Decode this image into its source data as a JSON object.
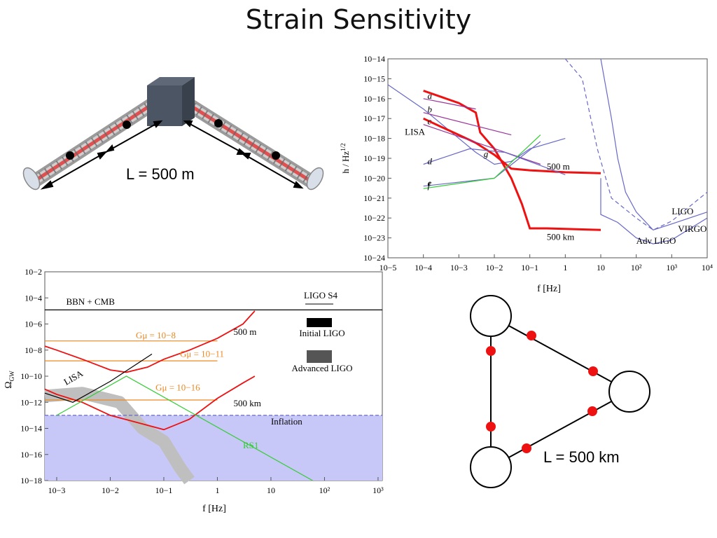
{
  "slide": {
    "title": "Strain Sensitivity"
  },
  "ground_detector": {
    "arm_label": "L = 500 m"
  },
  "space_detector": {
    "arm_label": "L = 500 km"
  },
  "colors": {
    "red": "#ee1111",
    "blue": "#6868c8",
    "green": "#33cc33",
    "purple": "#993399",
    "orange": "#ee8822",
    "inflation": "#c8c8f8",
    "gray": "#bfbfbf"
  },
  "chart_data": [
    {
      "type": "line",
      "xlabel": "f [Hz]",
      "ylabel": "h / Hz^1/2",
      "x_scale": "log",
      "y_scale": "log",
      "xlim": [
        1e-05,
        10000.0
      ],
      "ylim": [
        1e-24,
        1e-14
      ],
      "x_ticks": [
        "10−5",
        "10−4",
        "10−3",
        "10−2",
        "10−1",
        "1",
        "10",
        "10²",
        "10³",
        "10⁴"
      ],
      "y_ticks": [
        "10−24",
        "10−23",
        "10−22",
        "10−21",
        "10−20",
        "10−19",
        "10−18",
        "10−17",
        "10−16",
        "10−15",
        "10−14"
      ],
      "series": [
        {
          "name": "LISA",
          "color": "blue",
          "x": [
            1e-05,
            0.0001,
            0.001,
            0.003,
            0.01,
            0.03,
            0.1,
            1
          ],
          "y": [
            5e-16,
            3e-17,
            1e-18,
            2e-19,
            5e-20,
            7e-20,
            3e-19,
            1e-18
          ]
        },
        {
          "name": "LIGO",
          "color": "blue",
          "dashed": true,
          "x": [
            1,
            3,
            8,
            20,
            100,
            300,
            1000,
            10000.0
          ],
          "y": [
            1e-14,
            1e-15,
            3e-19,
            1e-21,
            1e-22,
            2.5e-23,
            7e-23,
            2e-21
          ]
        },
        {
          "name": "VIRGO",
          "color": "blue",
          "x": [
            10,
            20,
            30,
            50,
            100,
            300,
            1000,
            10000.0
          ],
          "y": [
            1e-14,
            1e-17,
            1e-19,
            2e-21,
            2e-22,
            2.5e-23,
            5e-23,
            2e-22
          ]
        },
        {
          "name": "Adv LIGO",
          "color": "blue",
          "x": [
            10,
            10,
            30,
            100,
            300,
            1000,
            10000.0
          ],
          "y": [
            1e-20,
            1.5e-22,
            6e-23,
            1e-23,
            5e-24,
            8e-24,
            1e-22
          ]
        },
        {
          "name": "500 m",
          "color": "red",
          "x": [
            0.0001,
            0.0003,
            0.001,
            0.003,
            0.01,
            0.03,
            0.1,
            1,
            10
          ],
          "y": [
            1e-17,
            4e-18,
            1.5e-18,
            6e-19,
            1.5e-19,
            3e-20,
            2.5e-20,
            2e-20,
            1.8e-20
          ]
        },
        {
          "name": "500 km",
          "color": "red",
          "x": [
            0.0001,
            0.001,
            0.003,
            0.004,
            0.01,
            0.03,
            0.06,
            0.1,
            0.3,
            10
          ],
          "y": [
            2.5e-16,
            6e-17,
            2e-17,
            2e-18,
            3e-19,
            1e-20,
            5e-22,
            3e-23,
            3e-23,
            2.5e-23
          ]
        },
        {
          "name": "a",
          "color": "purple",
          "x": [
            0.0001,
            0.003
          ],
          "y": [
            1e-16,
            3e-17
          ]
        },
        {
          "name": "b",
          "color": "purple",
          "x": [
            0.0001,
            0.03
          ],
          "y": [
            2e-17,
            1.5e-18
          ]
        },
        {
          "name": "c",
          "color": "purple",
          "x": [
            0.0001,
            0.2
          ],
          "y": [
            5e-18,
            5e-20
          ]
        },
        {
          "name": "d",
          "color": "blue",
          "x": [
            0.0001,
            0.002,
            0.02,
            1
          ],
          "y": [
            5e-20,
            3e-19,
            2e-19,
            1.5e-20
          ]
        },
        {
          "name": "e",
          "color": "blue",
          "x": [
            0.0001,
            0.01,
            0.2
          ],
          "y": [
            4e-21,
            1e-20,
            7e-19
          ]
        },
        {
          "name": "f",
          "color": "green",
          "x": [
            0.0001,
            0.01,
            0.2
          ],
          "y": [
            3e-21,
            1e-20,
            1.5e-18
          ]
        }
      ],
      "annotations": [
        "LISA",
        "a",
        "b",
        "c",
        "d",
        "e",
        "f",
        "g",
        "500 m",
        "500 km",
        "LIGO",
        "VIRGO",
        "Adv LIGO"
      ]
    },
    {
      "type": "line",
      "xlabel": "f [Hz]",
      "ylabel": "Ω_GW",
      "x_scale": "log",
      "y_scale": "log",
      "xlim": [
        0.0006,
        1200.0
      ],
      "ylim": [
        1e-18,
        0.01
      ],
      "x_ticks": [
        "10−3",
        "10−2",
        "10−1",
        "1",
        "10",
        "10²",
        "10³"
      ],
      "y_ticks": [
        "10−2",
        "10−4",
        "10−6",
        "10−8",
        "10−10",
        "10−12",
        "10−14",
        "10−16",
        "10−18"
      ],
      "series": [
        {
          "name": "BBN + CMB",
          "color": "black",
          "x": [
            0.0006,
            1200.0
          ],
          "y": [
            1.2e-05,
            1.2e-05
          ]
        },
        {
          "name": "Inflation",
          "color": "blue",
          "x": [
            0.0006,
            1200.0
          ],
          "y": [
            1e-13,
            1e-13
          ]
        },
        {
          "name": "Gμ = 10−8",
          "color": "orange",
          "x": [
            0.0006,
            1
          ],
          "y": [
            5e-08,
            5e-08
          ]
        },
        {
          "name": "Gμ = 10−11",
          "color": "orange",
          "x": [
            0.0006,
            1
          ],
          "y": [
            1.5e-09,
            1.5e-09
          ]
        },
        {
          "name": "Gμ = 10−16",
          "color": "orange",
          "x": [
            0.0006,
            1
          ],
          "y": [
            1.5e-12,
            1.5e-12
          ]
        },
        {
          "name": "500 m",
          "color": "red",
          "x": [
            0.0006,
            0.001,
            0.003,
            0.01,
            0.02,
            0.05,
            0.1,
            0.3,
            1,
            3,
            5
          ],
          "y": [
            2e-08,
            1e-08,
            2e-09,
            3e-10,
            2e-10,
            5e-10,
            2e-09,
            1e-08,
            8e-08,
            1e-06,
            1e-05
          ]
        },
        {
          "name": "500 km",
          "color": "red",
          "x": [
            0.0006,
            0.001,
            0.003,
            0.01,
            0.03,
            0.1,
            0.3,
            1,
            3,
            5
          ],
          "y": [
            1e-11,
            4e-12,
            1e-12,
            1e-13,
            3e-14,
            8e-15,
            5e-14,
            2e-12,
            3e-11,
            1e-10
          ]
        },
        {
          "name": "LISA",
          "color": "black",
          "x": [
            0.0006,
            0.002,
            0.01,
            0.06
          ],
          "y": [
            5e-12,
            1e-12,
            4e-11,
            5e-09
          ]
        },
        {
          "name": "RS1",
          "color": "green",
          "x": [
            0.001,
            0.02,
            60
          ],
          "y": [
            1e-13,
            1e-10,
            1e-18
          ]
        }
      ],
      "legend": [
        "LIGO S4",
        "Initial LIGO",
        "Advanced LIGO"
      ],
      "annotations": [
        "BBN + CMB",
        "LISA",
        "Gμ = 10−8",
        "Gμ = 10−11",
        "Gμ = 10−16",
        "500 m",
        "500 km",
        "Inflation",
        "RS1"
      ]
    }
  ]
}
